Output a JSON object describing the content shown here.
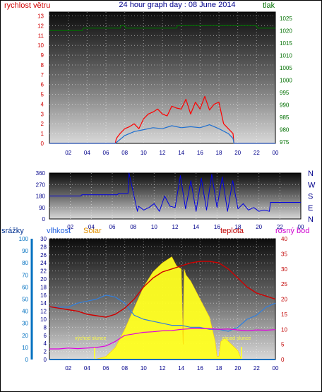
{
  "header": {
    "left_label": "rychlost větru",
    "title": "24 hour graph day : 08 June 2014",
    "right_label": "tlak"
  },
  "colors": {
    "wind": "#ff0000",
    "wind_gust": "#ff0000",
    "wind_avg": "#1e6fd0",
    "pressure": "#007000",
    "direction": "#0000e0",
    "rain": "#0070c0",
    "humidity": "#2f7fe0",
    "solar": "#ffff20",
    "temperature": "#d00000",
    "dewpoint": "#e000e0",
    "sun_marker": "#ffff40"
  },
  "chart_data": [
    {
      "id": "wind-pressure",
      "type": "line",
      "x_ticks": [
        "02",
        "04",
        "06",
        "08",
        "10",
        "12",
        "14",
        "16",
        "18",
        "20",
        "22",
        "00"
      ],
      "y_left": {
        "label": "rychlost větru",
        "ticks": [
          0,
          1,
          2,
          3,
          4,
          5,
          6,
          7,
          8,
          9,
          10,
          11,
          12,
          13
        ],
        "range": [
          0,
          13.4
        ]
      },
      "y_right": {
        "label": "tlak",
        "ticks": [
          975,
          980,
          985,
          990,
          995,
          1000,
          1005,
          1010,
          1015,
          1020,
          1025
        ],
        "range": [
          974.5,
          1027.5
        ]
      },
      "grid": true,
      "series": [
        {
          "key": "wind_gust",
          "x": [
            0,
            7,
            7.1,
            7.5,
            8,
            8.5,
            9,
            9.5,
            10,
            10.5,
            11,
            11.5,
            12,
            12.5,
            13,
            13.5,
            14,
            14.5,
            15,
            15.5,
            16,
            16.5,
            17,
            17.5,
            18,
            18.5,
            19,
            19.5,
            19.6,
            24
          ],
          "y": [
            0,
            0,
            0.5,
            1,
            1.5,
            1.7,
            2,
            1.5,
            2.5,
            3,
            3.2,
            3.5,
            3,
            2.8,
            3.8,
            3.6,
            3.5,
            4.5,
            3,
            4.2,
            3.5,
            4.8,
            3.4,
            4,
            4.2,
            2,
            1.5,
            1,
            0,
            0
          ]
        },
        {
          "key": "wind_avg",
          "x": [
            0,
            7,
            7.5,
            8,
            9,
            10,
            11,
            12,
            13,
            14,
            15,
            16,
            17,
            18,
            19,
            19.5,
            19.6,
            24
          ],
          "y": [
            0,
            0,
            0.4,
            0.8,
            1.2,
            1.4,
            1.6,
            1.5,
            1.8,
            1.6,
            1.7,
            1.6,
            1.9,
            1.5,
            1,
            0.5,
            0,
            0
          ]
        },
        {
          "key": "pressure",
          "axis": "right",
          "x": [
            0,
            3.5,
            3.6,
            7.5,
            7.6,
            8,
            8.1,
            13.5,
            13.6,
            22,
            22.1,
            24
          ],
          "y": [
            1020,
            1020,
            1021,
            1021,
            1022,
            1022,
            1021,
            1021,
            1022,
            1022,
            1021,
            1021
          ]
        }
      ]
    },
    {
      "id": "wind-direction",
      "type": "line",
      "x_ticks": [
        "02",
        "04",
        "06",
        "08",
        "10",
        "12",
        "14",
        "16",
        "18",
        "20",
        "22",
        "00"
      ],
      "y_left": {
        "ticks": [
          0,
          90,
          180,
          270,
          360
        ],
        "range": [
          0,
          360
        ]
      },
      "y_right": {
        "ticks": [
          "N",
          "W",
          "S",
          "E",
          "N"
        ]
      },
      "grid": true,
      "series": [
        {
          "key": "direction",
          "x": [
            0,
            3,
            3.1,
            6.5,
            6.6,
            7.5,
            7.6,
            8.4,
            8.5,
            9,
            9.5,
            10,
            10.5,
            11,
            11.5,
            12,
            12.5,
            13,
            13.5,
            14,
            14.5,
            15,
            15.5,
            16,
            16.5,
            17,
            17.5,
            18,
            18.5,
            19,
            19.5,
            20,
            20.5,
            21,
            21.1,
            24
          ],
          "y": [
            180,
            180,
            190,
            190,
            200,
            200,
            360,
            60,
            100,
            70,
            90,
            120,
            60,
            180,
            100,
            90,
            340,
            80,
            300,
            60,
            320,
            70,
            350,
            90,
            330,
            60,
            300,
            80,
            120,
            70,
            90,
            60,
            70,
            60,
            130,
            130
          ]
        }
      ]
    },
    {
      "id": "rain-humidity-solar-temp",
      "type": "line",
      "labels": {
        "rain": "srážky",
        "humidity": "vlhkost",
        "solar": "Solar",
        "temperature": "teplota",
        "dewpoint": "rosný bod"
      },
      "x_ticks": [
        "02",
        "04",
        "06",
        "08",
        "10",
        "12",
        "14",
        "16",
        "18",
        "20",
        "22",
        "00"
      ],
      "y_rain": {
        "ticks": [
          0,
          10,
          20,
          30,
          40,
          50,
          60,
          70,
          80,
          90,
          100
        ],
        "range": [
          0,
          100
        ]
      },
      "y_humidity": {
        "ticks": [
          0,
          2,
          4,
          6,
          8,
          10,
          12,
          14,
          16,
          18,
          20,
          22,
          24,
          26,
          28,
          30
        ],
        "range": [
          0,
          30
        ]
      },
      "y_temp": {
        "ticks": [
          0,
          5,
          10,
          15,
          20,
          25,
          30,
          35,
          40
        ],
        "range": [
          0,
          40
        ]
      },
      "annotations": [
        {
          "key": "sunrise",
          "text": "východ slunce",
          "x": 4.8
        },
        {
          "key": "sunset",
          "text": "západ slunce",
          "x": 20.4
        }
      ],
      "grid": true,
      "series": [
        {
          "key": "solar",
          "fill": true,
          "axis": "temp",
          "x": [
            0,
            4.8,
            6,
            7,
            8,
            9,
            10,
            11,
            12,
            13,
            13.5,
            14,
            14.2,
            14.3,
            14.5,
            15,
            16,
            17,
            17.6,
            17.8,
            18,
            18.2,
            18.6,
            19,
            20,
            20.4,
            24
          ],
          "y": [
            0,
            0,
            1,
            4,
            10,
            17,
            24,
            29,
            32,
            34,
            31,
            30,
            5,
            30,
            28,
            26,
            20,
            14,
            6,
            1,
            1,
            6,
            7,
            6,
            3,
            0,
            0
          ]
        },
        {
          "key": "humidity",
          "axis": "humidity",
          "x": [
            0,
            1,
            2,
            3,
            4,
            5,
            6,
            7,
            8,
            9,
            10,
            11,
            12,
            13,
            14,
            15,
            16,
            17,
            18,
            19,
            20,
            21,
            22,
            23,
            24
          ],
          "y": [
            13,
            13,
            13,
            14,
            14.5,
            15,
            16,
            15.5,
            14,
            11,
            10,
            9.5,
            9,
            8.5,
            8.5,
            8,
            8,
            7.5,
            7.5,
            7,
            8,
            10,
            11,
            13,
            14
          ]
        },
        {
          "key": "temperature",
          "axis": "temp",
          "x": [
            0,
            1,
            2,
            3,
            4,
            5,
            6,
            7,
            8,
            9,
            10,
            11,
            12,
            13,
            14,
            15,
            16,
            17,
            18,
            19,
            20,
            21,
            22,
            23,
            24
          ],
          "y": [
            17.5,
            17,
            16.5,
            16,
            15,
            14.5,
            14,
            15,
            17,
            20,
            24,
            27,
            29,
            30,
            31,
            32,
            32.5,
            32.5,
            32,
            30,
            27,
            24,
            22,
            21,
            20
          ]
        },
        {
          "key": "dewpoint",
          "axis": "temp",
          "x": [
            0,
            1,
            2,
            3,
            4,
            5,
            6,
            7,
            8,
            9,
            10,
            11,
            12,
            13,
            14,
            15,
            16,
            17,
            18,
            19,
            20,
            21,
            22,
            23,
            24
          ],
          "y": [
            3.5,
            3.5,
            3.8,
            3.6,
            3.8,
            4,
            4.5,
            6,
            8,
            8.5,
            9,
            9.2,
            9.5,
            9.6,
            10,
            10.2,
            10.3,
            10.2,
            10,
            10.1,
            9.8,
            9.5,
            9.8,
            9.7,
            9.9
          ]
        },
        {
          "key": "rain",
          "axis": "rain",
          "x": [
            0,
            24
          ],
          "y": [
            0,
            0
          ]
        }
      ]
    }
  ]
}
